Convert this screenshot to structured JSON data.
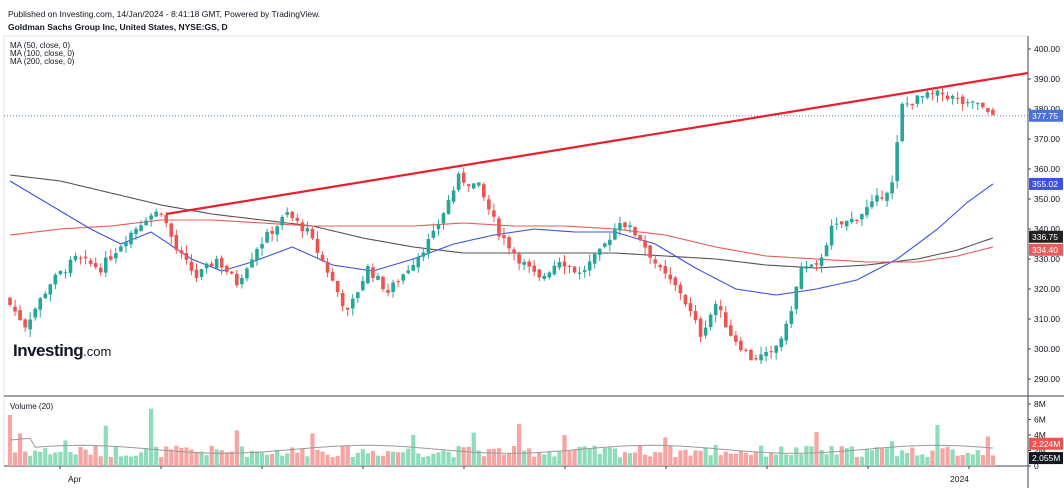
{
  "header": {
    "published": "Published on Investing.com, 14/Jan/2024 - 8:41:18 GMT, Powered by TradingView.",
    "title": "Goldman Sachs Group Inc, United States, NYSE:GS, D"
  },
  "indicators": {
    "ma50": "MA (50, close, 0)",
    "ma100": "MA (100, close, 0)",
    "ma200": "MA (200, close, 0)",
    "volume": "Volume (20)"
  },
  "logo": {
    "main": "Investing",
    "suffix": ".com"
  },
  "colors": {
    "up": "#26a69a",
    "up_fill": "#2ebd85",
    "down": "#ef5350",
    "ma50": "#3f51e0",
    "ma100": "#e85c5c",
    "ma200": "#555555",
    "trendline": "#e8202e",
    "current_line": "#5b7fd6"
  },
  "chart_data": [
    {
      "type": "candlestick",
      "title": "Goldman Sachs Group Inc, United States, NYSE:GS, D",
      "ylim": [
        285,
        403
      ],
      "y_ticks": [
        290,
        300,
        310,
        320,
        330,
        340,
        350,
        360,
        370,
        380,
        390,
        400
      ],
      "x_labels": [
        "Apr",
        "2024"
      ],
      "price_tags": [
        {
          "name": "last",
          "value": 377.75,
          "label": "377.75"
        },
        {
          "name": "ma50",
          "value": 355.02,
          "label": "355.02"
        },
        {
          "name": "ma200",
          "value": 336.75,
          "label": "336.75"
        },
        {
          "name": "ma100",
          "value": 334.4,
          "label": "334.40"
        }
      ],
      "anchors": [
        [
          0,
          317
        ],
        [
          4,
          308
        ],
        [
          9,
          322
        ],
        [
          14,
          330
        ],
        [
          19,
          327
        ],
        [
          24,
          337
        ],
        [
          28,
          344
        ],
        [
          31,
          346
        ],
        [
          34,
          333
        ],
        [
          38,
          324
        ],
        [
          42,
          330
        ],
        [
          46,
          322
        ],
        [
          50,
          334
        ],
        [
          56,
          345
        ],
        [
          60,
          339
        ],
        [
          64,
          326
        ],
        [
          68,
          312
        ],
        [
          72,
          327
        ],
        [
          76,
          319
        ],
        [
          80,
          327
        ],
        [
          85,
          338
        ],
        [
          90,
          357
        ],
        [
          94,
          354
        ],
        [
          98,
          339
        ],
        [
          102,
          330
        ],
        [
          106,
          323
        ],
        [
          110,
          330
        ],
        [
          114,
          325
        ],
        [
          118,
          332
        ],
        [
          122,
          343
        ],
        [
          126,
          337
        ],
        [
          130,
          326
        ],
        [
          134,
          319
        ],
        [
          138,
          305
        ],
        [
          141,
          315
        ],
        [
          144,
          305
        ],
        [
          148,
          297
        ],
        [
          152,
          298
        ],
        [
          155,
          307
        ],
        [
          158,
          327
        ],
        [
          161,
          327
        ],
        [
          164,
          340
        ],
        [
          168,
          343
        ],
        [
          172,
          348
        ],
        [
          176,
          355
        ],
        [
          178,
          381
        ],
        [
          182,
          384
        ],
        [
          186,
          385
        ],
        [
          189,
          383
        ],
        [
          191,
          381
        ],
        [
          193,
          382
        ],
        [
          195,
          378
        ]
      ],
      "trendline": {
        "start": {
          "index": 31,
          "value": 345
        },
        "end": {
          "index": 198,
          "value": 392
        }
      },
      "ma50": [
        [
          0,
          356
        ],
        [
          8,
          348
        ],
        [
          16,
          340
        ],
        [
          22,
          335
        ],
        [
          28,
          339
        ],
        [
          36,
          330
        ],
        [
          42,
          326
        ],
        [
          48,
          329
        ],
        [
          56,
          334
        ],
        [
          64,
          328
        ],
        [
          72,
          326
        ],
        [
          80,
          330
        ],
        [
          88,
          335
        ],
        [
          96,
          338
        ],
        [
          104,
          340
        ],
        [
          112,
          339
        ],
        [
          120,
          339
        ],
        [
          128,
          335
        ],
        [
          136,
          327
        ],
        [
          144,
          320
        ],
        [
          152,
          318
        ],
        [
          160,
          320
        ],
        [
          168,
          323
        ],
        [
          176,
          330
        ],
        [
          184,
          340
        ],
        [
          190,
          349
        ],
        [
          195,
          355
        ]
      ],
      "ma100": [
        [
          0,
          338
        ],
        [
          10,
          340
        ],
        [
          20,
          341
        ],
        [
          30,
          343
        ],
        [
          40,
          343
        ],
        [
          50,
          342
        ],
        [
          60,
          341
        ],
        [
          70,
          341
        ],
        [
          80,
          341
        ],
        [
          90,
          342
        ],
        [
          100,
          341
        ],
        [
          110,
          341
        ],
        [
          120,
          340
        ],
        [
          130,
          338
        ],
        [
          140,
          334
        ],
        [
          150,
          331
        ],
        [
          160,
          330
        ],
        [
          170,
          329
        ],
        [
          180,
          329
        ],
        [
          188,
          331
        ],
        [
          195,
          334
        ]
      ],
      "ma200": [
        [
          0,
          358
        ],
        [
          10,
          356
        ],
        [
          20,
          352
        ],
        [
          30,
          348
        ],
        [
          40,
          345
        ],
        [
          50,
          343
        ],
        [
          60,
          341
        ],
        [
          70,
          337
        ],
        [
          80,
          334
        ],
        [
          90,
          332
        ],
        [
          100,
          332
        ],
        [
          110,
          332
        ],
        [
          120,
          332
        ],
        [
          130,
          331
        ],
        [
          140,
          330
        ],
        [
          150,
          328
        ],
        [
          160,
          327
        ],
        [
          170,
          328
        ],
        [
          180,
          330
        ],
        [
          188,
          333
        ],
        [
          195,
          337
        ]
      ]
    },
    {
      "type": "bar",
      "title": "Volume (20)",
      "ylim": [
        0,
        8
      ],
      "y_ticks": [
        0,
        2,
        4,
        6,
        8
      ],
      "y_tick_labels": [
        "0",
        "2M",
        "4M",
        "6M",
        "8M"
      ],
      "price_tags": [
        {
          "name": "volume-ma",
          "value": 2.224,
          "label": "2.224M"
        },
        {
          "name": "volume",
          "value": 2.055,
          "label": "2.055M"
        }
      ],
      "spikes": [
        [
          0,
          6.6
        ],
        [
          2,
          4.2
        ],
        [
          11,
          3.3
        ],
        [
          19,
          5.2
        ],
        [
          28,
          7.4
        ],
        [
          45,
          4.6
        ],
        [
          60,
          4.2
        ],
        [
          80,
          4.0
        ],
        [
          92,
          4.3
        ],
        [
          101,
          5.4
        ],
        [
          110,
          4.0
        ],
        [
          130,
          3.7
        ],
        [
          140,
          2.7
        ],
        [
          160,
          4.4
        ],
        [
          175,
          3.2
        ],
        [
          184,
          5.3
        ],
        [
          194,
          3.8
        ]
      ],
      "base_level": 2.05
    }
  ]
}
